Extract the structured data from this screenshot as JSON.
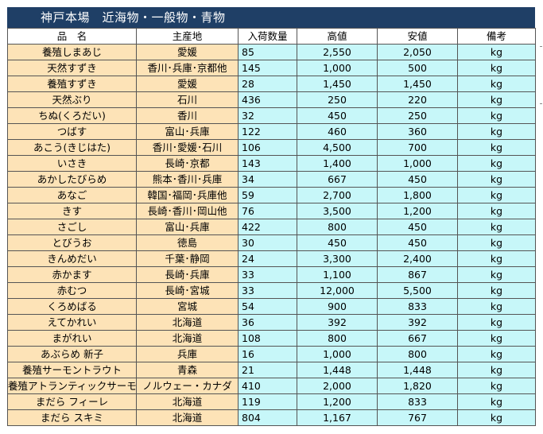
{
  "title": "神戸本場　近海物・一般物・青物",
  "headers": [
    "品　名",
    "主産地",
    "入荷数量",
    "高値",
    "安値",
    "備考"
  ],
  "rows": [
    {
      "name": "養殖しまあじ",
      "origin": "愛媛",
      "qty": "85",
      "high": "2,550",
      "low": "2,050",
      "note": "kg"
    },
    {
      "name": "天然すずき",
      "origin": "香川･兵庫･京都他",
      "qty": "145",
      "high": "1,000",
      "low": "500",
      "note": "kg"
    },
    {
      "name": "養殖すずき",
      "origin": "愛媛",
      "qty": "28",
      "high": "1,450",
      "low": "1,450",
      "note": "kg"
    },
    {
      "name": "天然ぶり",
      "origin": "石川",
      "qty": "436",
      "high": "250",
      "low": "220",
      "note": "kg"
    },
    {
      "name": "ちぬ(くろだい)",
      "origin": "香川",
      "qty": "32",
      "high": "450",
      "low": "250",
      "note": "kg"
    },
    {
      "name": "つばす",
      "origin": "富山･兵庫",
      "qty": "122",
      "high": "460",
      "low": "360",
      "note": "kg"
    },
    {
      "name": "あこう(きじはた)",
      "origin": "香川･愛媛･石川",
      "qty": "106",
      "high": "4,500",
      "low": "700",
      "note": "kg"
    },
    {
      "name": "いさき",
      "origin": "長崎･京都",
      "qty": "143",
      "high": "1,400",
      "low": "1,000",
      "note": "kg"
    },
    {
      "name": "あかしたびらめ",
      "origin": "熊本･香川･兵庫",
      "qty": "34",
      "high": "667",
      "low": "450",
      "note": "kg"
    },
    {
      "name": "あなご",
      "origin": "韓国･福岡･兵庫他",
      "qty": "59",
      "high": "2,700",
      "low": "1,800",
      "note": "kg"
    },
    {
      "name": "きす",
      "origin": "長崎･香川･岡山他",
      "qty": "76",
      "high": "3,500",
      "low": "1,200",
      "note": "kg"
    },
    {
      "name": "さごし",
      "origin": "富山･兵庫",
      "qty": "422",
      "high": "800",
      "low": "450",
      "note": "kg"
    },
    {
      "name": "とびうお",
      "origin": "徳島",
      "qty": "30",
      "high": "450",
      "low": "450",
      "note": "kg"
    },
    {
      "name": "きんめだい",
      "origin": "千葉･静岡",
      "qty": "24",
      "high": "3,300",
      "low": "2,400",
      "note": "kg"
    },
    {
      "name": "赤かます",
      "origin": "長崎･兵庫",
      "qty": "33",
      "high": "1,100",
      "low": "867",
      "note": "kg"
    },
    {
      "name": "赤むつ",
      "origin": "長崎･宮城",
      "qty": "33",
      "high": "12,000",
      "low": "5,500",
      "note": "kg"
    },
    {
      "name": "くろめばる",
      "origin": "宮城",
      "qty": "54",
      "high": "900",
      "low": "833",
      "note": "kg"
    },
    {
      "name": "えてかれい",
      "origin": "北海道",
      "qty": "36",
      "high": "392",
      "low": "392",
      "note": "kg"
    },
    {
      "name": "まがれい",
      "origin": "北海道",
      "qty": "108",
      "high": "800",
      "low": "667",
      "note": "kg"
    },
    {
      "name": "あぶらめ 新子",
      "origin": "兵庫",
      "qty": "16",
      "high": "1,000",
      "low": "800",
      "note": "kg"
    },
    {
      "name": "養殖サーモントラウト",
      "origin": "青森",
      "qty": "21",
      "high": "1,448",
      "low": "1,448",
      "note": "kg"
    },
    {
      "name": "養殖アトランティックサーモン",
      "origin": "ノルウェー・カナダ",
      "qty": "410",
      "high": "2,000",
      "low": "1,820",
      "note": "kg"
    },
    {
      "name": "まだら フィーレ",
      "origin": "北海道",
      "qty": "119",
      "high": "1,200",
      "low": "833",
      "note": "kg"
    },
    {
      "name": "まだら スキミ",
      "origin": "北海道",
      "qty": "804",
      "high": "1,167",
      "low": "767",
      "note": "kg"
    }
  ]
}
